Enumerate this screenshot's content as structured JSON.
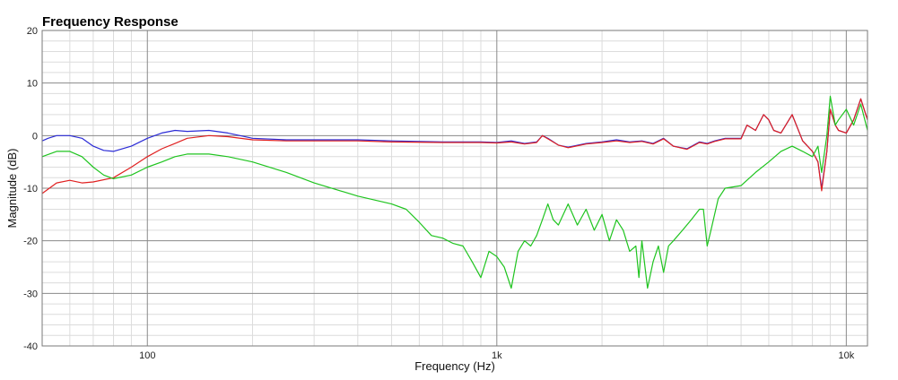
{
  "chart_data": {
    "type": "line",
    "title": "Frequency Response",
    "xlabel": "Frequency (Hz)",
    "ylabel": "Magnitude (dB)",
    "x_scale": "log",
    "xlim": [
      50,
      11500
    ],
    "ylim": [
      -40,
      20
    ],
    "x_ticks": [
      {
        "value": 100,
        "label": "100"
      },
      {
        "value": 1000,
        "label": "1k"
      },
      {
        "value": 10000,
        "label": "10k"
      }
    ],
    "y_ticks": [
      {
        "value": 20,
        "label": "20"
      },
      {
        "value": 10,
        "label": "10"
      },
      {
        "value": 0,
        "label": "0"
      },
      {
        "value": -10,
        "label": "-10"
      },
      {
        "value": -20,
        "label": "-20"
      },
      {
        "value": -30,
        "label": "-30"
      },
      {
        "value": -40,
        "label": "-40"
      }
    ],
    "grid": true,
    "legend": "none",
    "series": [
      {
        "color": "#2b2bd6",
        "points": [
          [
            50,
            -1
          ],
          [
            52,
            -0.5
          ],
          [
            55,
            0
          ],
          [
            60,
            0
          ],
          [
            65,
            -0.5
          ],
          [
            70,
            -2
          ],
          [
            75,
            -2.8
          ],
          [
            80,
            -3
          ],
          [
            90,
            -2
          ],
          [
            100,
            -0.5
          ],
          [
            110,
            0.5
          ],
          [
            120,
            1
          ],
          [
            130,
            0.8
          ],
          [
            150,
            1
          ],
          [
            170,
            0.5
          ],
          [
            200,
            -0.5
          ],
          [
            250,
            -0.8
          ],
          [
            300,
            -0.8
          ],
          [
            400,
            -0.8
          ],
          [
            500,
            -1
          ],
          [
            700,
            -1.2
          ],
          [
            900,
            -1.2
          ],
          [
            1000,
            -1.3
          ],
          [
            1100,
            -1
          ],
          [
            1200,
            -1.5
          ],
          [
            1300,
            -1.2
          ],
          [
            1350,
            0
          ],
          [
            1400,
            -0.5
          ],
          [
            1500,
            -1.8
          ],
          [
            1600,
            -2.2
          ],
          [
            1800,
            -1.5
          ],
          [
            2000,
            -1.2
          ],
          [
            2200,
            -0.8
          ],
          [
            2400,
            -1.2
          ],
          [
            2600,
            -1
          ],
          [
            2800,
            -1.5
          ],
          [
            3000,
            -0.5
          ],
          [
            3200,
            -2
          ],
          [
            3500,
            -2.5
          ],
          [
            3800,
            -1.2
          ],
          [
            4000,
            -1.5
          ],
          [
            4200,
            -1
          ],
          [
            4500,
            -0.5
          ],
          [
            5000,
            -0.5
          ],
          [
            5200,
            2
          ],
          [
            5500,
            1
          ],
          [
            5800,
            4
          ],
          [
            6000,
            3
          ],
          [
            6200,
            1
          ],
          [
            6500,
            0.5
          ],
          [
            7000,
            4
          ],
          [
            7500,
            -1
          ],
          [
            8000,
            -3
          ],
          [
            8300,
            -5
          ],
          [
            8500,
            -10
          ],
          [
            8800,
            -3
          ],
          [
            9000,
            5
          ],
          [
            9300,
            2
          ],
          [
            9500,
            1
          ],
          [
            10000,
            0.5
          ],
          [
            10500,
            3
          ],
          [
            11000,
            7
          ],
          [
            11500,
            3
          ]
        ]
      },
      {
        "color": "#e02020",
        "points": [
          [
            50,
            -11
          ],
          [
            55,
            -9
          ],
          [
            60,
            -8.5
          ],
          [
            65,
            -9
          ],
          [
            70,
            -8.8
          ],
          [
            80,
            -8
          ],
          [
            90,
            -6
          ],
          [
            100,
            -4
          ],
          [
            110,
            -2.5
          ],
          [
            120,
            -1.5
          ],
          [
            130,
            -0.5
          ],
          [
            150,
            0
          ],
          [
            170,
            -0.2
          ],
          [
            200,
            -0.8
          ],
          [
            250,
            -1
          ],
          [
            300,
            -1
          ],
          [
            400,
            -1
          ],
          [
            500,
            -1.2
          ],
          [
            700,
            -1.3
          ],
          [
            900,
            -1.3
          ],
          [
            1000,
            -1.4
          ],
          [
            1100,
            -1.2
          ],
          [
            1200,
            -1.6
          ],
          [
            1300,
            -1.3
          ],
          [
            1350,
            0
          ],
          [
            1400,
            -0.6
          ],
          [
            1500,
            -1.8
          ],
          [
            1600,
            -2.3
          ],
          [
            1800,
            -1.6
          ],
          [
            2000,
            -1.3
          ],
          [
            2200,
            -1
          ],
          [
            2400,
            -1.3
          ],
          [
            2600,
            -1.1
          ],
          [
            2800,
            -1.6
          ],
          [
            3000,
            -0.6
          ],
          [
            3200,
            -2
          ],
          [
            3500,
            -2.6
          ],
          [
            3800,
            -1.3
          ],
          [
            4000,
            -1.6
          ],
          [
            4200,
            -1.1
          ],
          [
            4500,
            -0.6
          ],
          [
            5000,
            -0.6
          ],
          [
            5200,
            2
          ],
          [
            5500,
            1
          ],
          [
            5800,
            4
          ],
          [
            6000,
            3
          ],
          [
            6200,
            1
          ],
          [
            6500,
            0.5
          ],
          [
            7000,
            4
          ],
          [
            7500,
            -1
          ],
          [
            8000,
            -3
          ],
          [
            8300,
            -5
          ],
          [
            8500,
            -10.5
          ],
          [
            8800,
            -3
          ],
          [
            9000,
            5
          ],
          [
            9300,
            2
          ],
          [
            9500,
            1
          ],
          [
            10000,
            0.5
          ],
          [
            10500,
            3
          ],
          [
            11000,
            7
          ],
          [
            11500,
            3
          ]
        ]
      },
      {
        "color": "#1fc41f",
        "points": [
          [
            50,
            -4
          ],
          [
            55,
            -3
          ],
          [
            60,
            -3
          ],
          [
            65,
            -4
          ],
          [
            70,
            -6
          ],
          [
            75,
            -7.5
          ],
          [
            80,
            -8.2
          ],
          [
            90,
            -7.5
          ],
          [
            100,
            -6
          ],
          [
            110,
            -5
          ],
          [
            120,
            -4
          ],
          [
            130,
            -3.5
          ],
          [
            150,
            -3.5
          ],
          [
            170,
            -4
          ],
          [
            200,
            -5
          ],
          [
            250,
            -7
          ],
          [
            300,
            -9
          ],
          [
            400,
            -11.5
          ],
          [
            500,
            -13
          ],
          [
            550,
            -14
          ],
          [
            600,
            -16.5
          ],
          [
            650,
            -19
          ],
          [
            700,
            -19.5
          ],
          [
            750,
            -20.5
          ],
          [
            800,
            -21
          ],
          [
            850,
            -24
          ],
          [
            900,
            -27
          ],
          [
            950,
            -22
          ],
          [
            1000,
            -23
          ],
          [
            1050,
            -25
          ],
          [
            1100,
            -29
          ],
          [
            1150,
            -22
          ],
          [
            1200,
            -20
          ],
          [
            1250,
            -21
          ],
          [
            1300,
            -19
          ],
          [
            1350,
            -16
          ],
          [
            1400,
            -13
          ],
          [
            1450,
            -16
          ],
          [
            1500,
            -17
          ],
          [
            1600,
            -13
          ],
          [
            1700,
            -17
          ],
          [
            1800,
            -14
          ],
          [
            1900,
            -18
          ],
          [
            2000,
            -15
          ],
          [
            2100,
            -20
          ],
          [
            2200,
            -16
          ],
          [
            2300,
            -18
          ],
          [
            2400,
            -22
          ],
          [
            2500,
            -21
          ],
          [
            2550,
            -27
          ],
          [
            2600,
            -20
          ],
          [
            2700,
            -29
          ],
          [
            2800,
            -24
          ],
          [
            2900,
            -21
          ],
          [
            3000,
            -26
          ],
          [
            3100,
            -21
          ],
          [
            3200,
            -20
          ],
          [
            3400,
            -18
          ],
          [
            3600,
            -16
          ],
          [
            3800,
            -14
          ],
          [
            3900,
            -14
          ],
          [
            4000,
            -21
          ],
          [
            4100,
            -18
          ],
          [
            4300,
            -12
          ],
          [
            4500,
            -10
          ],
          [
            5000,
            -9.5
          ],
          [
            5500,
            -7
          ],
          [
            6000,
            -5
          ],
          [
            6500,
            -3
          ],
          [
            7000,
            -2
          ],
          [
            7500,
            -3
          ],
          [
            8000,
            -4
          ],
          [
            8300,
            -2
          ],
          [
            8500,
            -7
          ],
          [
            8800,
            0
          ],
          [
            9000,
            7.5
          ],
          [
            9300,
            2
          ],
          [
            9500,
            3
          ],
          [
            10000,
            5
          ],
          [
            10500,
            2
          ],
          [
            11000,
            6
          ],
          [
            11500,
            1
          ]
        ]
      }
    ]
  }
}
